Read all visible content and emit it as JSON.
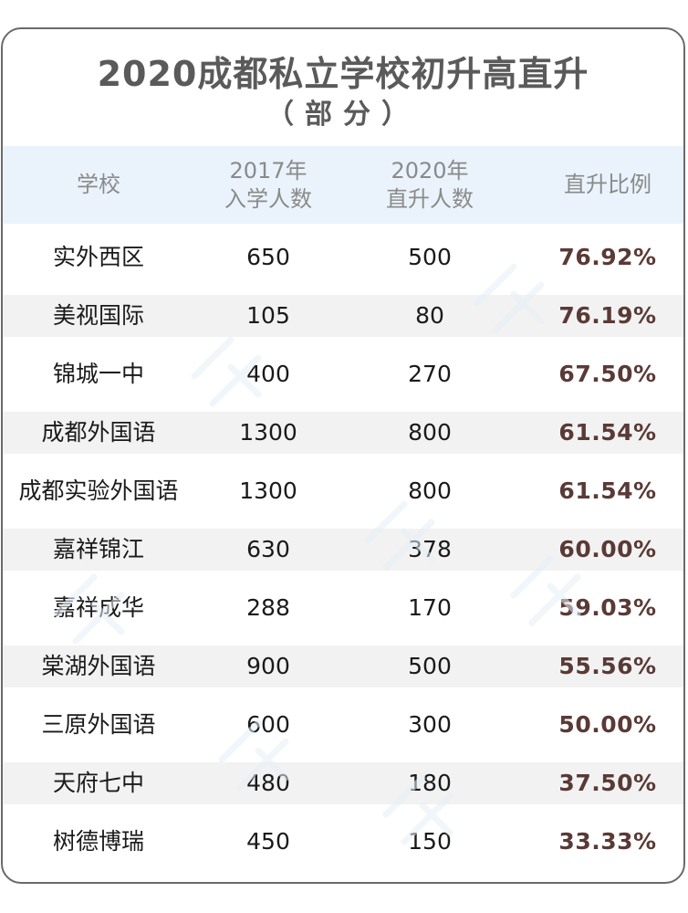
{
  "title": "2020成都私立学校初升高直升",
  "subtitle": "（部分）",
  "headers": {
    "school": "学校",
    "enroll_line1": "2017年",
    "enroll_line2": "入学人数",
    "promote_line1": "2020年",
    "promote_line2": "直升人数",
    "ratio": "直升比例"
  },
  "rows": [
    {
      "school": "实外西区",
      "enroll": "650",
      "promote": "500",
      "ratio": "76.92%"
    },
    {
      "school": "美视国际",
      "enroll": "105",
      "promote": "80",
      "ratio": "76.19%"
    },
    {
      "school": "锦城一中",
      "enroll": "400",
      "promote": "270",
      "ratio": "67.50%"
    },
    {
      "school": "成都外国语",
      "enroll": "1300",
      "promote": "800",
      "ratio": "61.54%"
    },
    {
      "school": "成都实验外国语",
      "enroll": "1300",
      "promote": "800",
      "ratio": "61.54%"
    },
    {
      "school": "嘉祥锦江",
      "enroll": "630",
      "promote": "378",
      "ratio": "60.00%"
    },
    {
      "school": "嘉祥成华",
      "enroll": "288",
      "promote": "170",
      "ratio": "59.03%"
    },
    {
      "school": "棠湖外国语",
      "enroll": "900",
      "promote": "500",
      "ratio": "55.56%"
    },
    {
      "school": "三原外国语",
      "enroll": "600",
      "promote": "300",
      "ratio": "50.00%"
    },
    {
      "school": "天府七中",
      "enroll": "480",
      "promote": "180",
      "ratio": "37.50%"
    },
    {
      "school": "树德博瑞",
      "enroll": "450",
      "promote": "150",
      "ratio": "33.33%"
    }
  ],
  "colors": {
    "border": "#6a6a6a",
    "header_bg": "#eaf3fb",
    "stripe_bg": "#f2f2f2",
    "ratio_text": "#5a3a36",
    "title_text": "#5a5a5a"
  }
}
